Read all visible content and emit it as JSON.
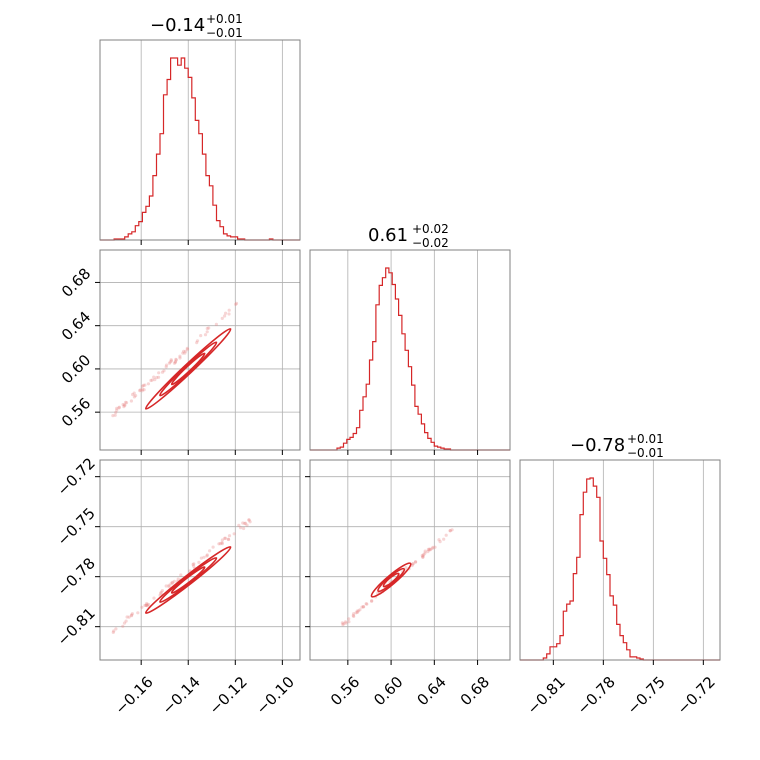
{
  "chart_data": {
    "type": "corner",
    "color": "#d62728",
    "grid": true,
    "parameters": [
      {
        "key": "p0",
        "title": {
          "median": "−0.14",
          "plus": "+0.01",
          "minus": "−0.01"
        },
        "median": -0.14,
        "sigma": 0.0065,
        "range": [
          -0.1775,
          -0.0925
        ],
        "ticks": [
          -0.16,
          -0.14,
          -0.12,
          -0.1
        ],
        "tick_labels": [
          "−0.16",
          "−0.14",
          "−0.12",
          "−0.10"
        ]
      },
      {
        "key": "p1",
        "title": {
          "median": "0.61",
          "plus": "+0.02",
          "minus": "−0.02"
        },
        "median": 0.61,
        "sigma": 0.0125,
        "range": [
          0.525,
          0.71
        ],
        "ticks": [
          0.56,
          0.6,
          0.64,
          0.68
        ],
        "tick_labels": [
          "0.56",
          "0.60",
          "0.64",
          "0.68"
        ]
      },
      {
        "key": "p2",
        "title": {
          "median": "−0.78",
          "plus": "+0.01",
          "minus": "−0.01"
        },
        "median": -0.78,
        "sigma": 0.008,
        "range": [
          -0.83,
          -0.71
        ],
        "ticks": [
          -0.81,
          -0.78,
          -0.75,
          -0.72
        ],
        "tick_labels": [
          "−0.81",
          "−0.78",
          "−0.75",
          "−0.72"
        ]
      }
    ],
    "histograms": [
      {
        "param": "p0",
        "bin_edges": [
          -0.176,
          -0.1745,
          -0.173,
          -0.1715,
          -0.17,
          -0.1685,
          -0.167,
          -0.1655,
          -0.164,
          -0.1625,
          -0.161,
          -0.1595,
          -0.158,
          -0.1565,
          -0.155,
          -0.1535,
          -0.152,
          -0.1505,
          -0.149,
          -0.1475,
          -0.146,
          -0.1445,
          -0.143,
          -0.1415,
          -0.14,
          -0.1385,
          -0.137,
          -0.1355,
          -0.134,
          -0.1325,
          -0.131,
          -0.1295,
          -0.128,
          -0.1265,
          -0.125,
          -0.1235,
          -0.122,
          -0.1205,
          -0.119,
          -0.1175,
          -0.116,
          -0.1145,
          -0.113,
          -0.1115,
          -0.11,
          -0.1085,
          -0.107,
          -0.1055,
          -0.104,
          -0.1025,
          -0.101
        ],
        "counts": [
          0,
          0,
          0,
          1,
          1,
          1,
          3,
          6,
          8,
          14,
          18,
          27,
          33,
          43,
          63,
          84,
          104,
          142,
          157,
          178,
          178,
          171,
          178,
          168,
          159,
          139,
          117,
          104,
          84,
          63,
          53,
          34,
          19,
          13,
          6,
          4,
          3,
          3,
          1,
          1,
          0,
          0,
          0,
          0,
          0,
          0,
          0,
          1,
          0,
          0
        ]
      },
      {
        "param": "p1",
        "bin_edges": [
          0.55,
          0.553,
          0.556,
          0.559,
          0.562,
          0.565,
          0.568,
          0.571,
          0.574,
          0.577,
          0.58,
          0.583,
          0.586,
          0.589,
          0.592,
          0.595,
          0.598,
          0.601,
          0.604,
          0.607,
          0.61,
          0.613,
          0.616,
          0.619,
          0.622,
          0.625,
          0.628,
          0.631,
          0.634,
          0.637,
          0.64,
          0.643,
          0.646,
          0.649,
          0.652,
          0.655,
          0.658,
          0.661
        ],
        "counts": [
          2,
          3,
          7,
          11,
          13,
          17,
          23,
          41,
          55,
          68,
          93,
          112,
          150,
          170,
          178,
          188,
          183,
          171,
          156,
          139,
          120,
          103,
          86,
          67,
          45,
          37,
          27,
          18,
          12,
          8,
          4,
          3,
          2,
          1,
          1,
          0,
          0
        ]
      },
      {
        "param": "p2",
        "bin_edges": [
          -0.82,
          -0.818,
          -0.816,
          -0.814,
          -0.812,
          -0.81,
          -0.808,
          -0.806,
          -0.804,
          -0.802,
          -0.8,
          -0.798,
          -0.796,
          -0.794,
          -0.792,
          -0.79,
          -0.788,
          -0.786,
          -0.784,
          -0.782,
          -0.78,
          -0.778,
          -0.776,
          -0.774,
          -0.772,
          -0.77,
          -0.768,
          -0.766,
          -0.764,
          -0.762,
          -0.76,
          -0.758,
          -0.756,
          -0.754,
          -0.752,
          -0.75,
          -0.748,
          -0.746,
          -0.744
        ],
        "counts": [
          0,
          0,
          2,
          6,
          13,
          13,
          16,
          24,
          48,
          55,
          58,
          85,
          101,
          143,
          165,
          178,
          179,
          171,
          160,
          117,
          100,
          84,
          63,
          54,
          35,
          24,
          17,
          10,
          3,
          3,
          2,
          1,
          0,
          0,
          0,
          0,
          0,
          0
        ]
      }
    ],
    "joint": [
      {
        "x": "p0",
        "y": "p1",
        "center": [
          -0.14,
          0.6
        ],
        "slope": 2.05,
        "width": 0.0045,
        "scatter_from": [
          -0.172,
          0.558
        ],
        "scatter_to": [
          -0.118,
          0.662
        ]
      },
      {
        "x": "p0",
        "y": "p2",
        "center": [
          -0.14,
          -0.782
        ],
        "slope": 1.1,
        "width": 0.003,
        "scatter_from": [
          -0.172,
          -0.813
        ],
        "scatter_to": [
          -0.113,
          -0.745
        ]
      },
      {
        "x": "p1",
        "y": "p2",
        "center": [
          0.6,
          -0.782
        ],
        "slope": 0.55,
        "width": 0.002,
        "scatter_from": [
          0.553,
          -0.81
        ],
        "scatter_to": [
          0.658,
          -0.751
        ]
      }
    ]
  }
}
